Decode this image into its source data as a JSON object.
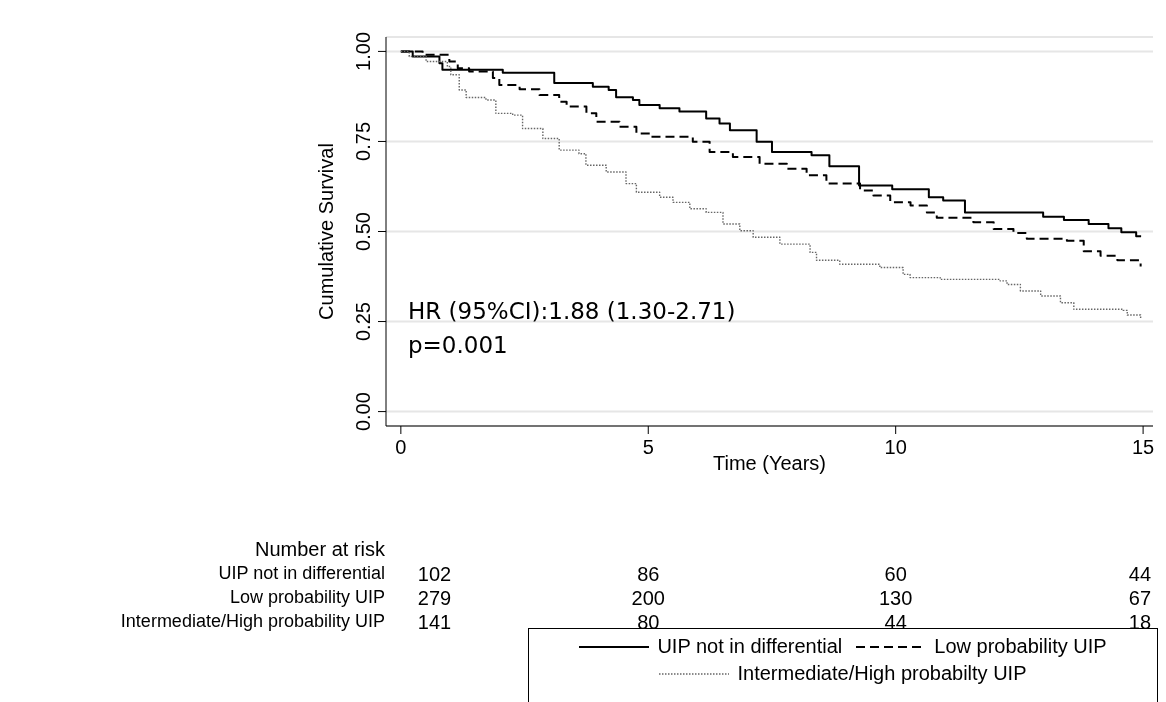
{
  "chart_data": {
    "type": "step",
    "xlabel": "Time (Years)",
    "ylabel": "Cumulative Survival",
    "xlim": [
      -0.3,
      15.2
    ],
    "xticks": [
      0,
      5,
      10,
      15
    ],
    "ylim": [
      -0.04,
      1.04
    ],
    "yticks": [
      {
        "value": 0,
        "label": "0.00"
      },
      {
        "value": 0.25,
        "label": "0.25"
      },
      {
        "value": 0.5,
        "label": "0.50"
      },
      {
        "value": 0.75,
        "label": "0.75"
      },
      {
        "value": 1,
        "label": "1.00"
      }
    ],
    "grid": "y",
    "legend": "bottom",
    "series": [
      {
        "name": "UIP not in differential",
        "color": "#000000",
        "line_style": "solid",
        "x": [
          0,
          0.24,
          0.78,
          0.84,
          2.06,
          3.1,
          3.88,
          4.2,
          4.35,
          4.69,
          4.82,
          5.23,
          5.63,
          6.17,
          6.44,
          6.65,
          7.19,
          7.5,
          8.3,
          8.66,
          9.26,
          9.93,
          10.67,
          10.96,
          11.4,
          12.98,
          13.4,
          13.9,
          14.3,
          14.56,
          14.86,
          14.96
        ],
        "values": [
          1,
          0.986,
          0.967,
          0.949,
          0.941,
          0.912,
          0.902,
          0.893,
          0.873,
          0.865,
          0.851,
          0.842,
          0.833,
          0.814,
          0.8,
          0.781,
          0.749,
          0.721,
          0.712,
          0.681,
          0.628,
          0.617,
          0.595,
          0.586,
          0.553,
          0.541,
          0.532,
          0.521,
          0.509,
          0.498,
          0.487,
          0.487
        ]
      },
      {
        "name": "Low probability UIP",
        "color": "#000000",
        "line_style": "dashed",
        "x": [
          0,
          0.44,
          0.98,
          1.15,
          1.38,
          1.86,
          1.99,
          2.4,
          2.8,
          3.2,
          3.35,
          3.75,
          3.95,
          4.42,
          4.76,
          5.03,
          5.9,
          6.24,
          6.71,
          7.25,
          7.8,
          8.2,
          8.6,
          9.28,
          9.55,
          9.89,
          10.3,
          10.63,
          10.83,
          11.57,
          11.98,
          12.38,
          12.65,
          13.46,
          13.8,
          14.14,
          14.48,
          14.95
        ],
        "values": [
          1,
          0.991,
          0.972,
          0.953,
          0.944,
          0.926,
          0.907,
          0.895,
          0.879,
          0.86,
          0.847,
          0.828,
          0.805,
          0.791,
          0.772,
          0.763,
          0.749,
          0.721,
          0.707,
          0.688,
          0.674,
          0.656,
          0.633,
          0.614,
          0.6,
          0.581,
          0.572,
          0.553,
          0.538,
          0.526,
          0.507,
          0.496,
          0.48,
          0.474,
          0.445,
          0.433,
          0.42,
          0.403
        ]
      },
      {
        "name": "Intermediate/High probabilty UIP",
        "color": "#666666",
        "line_style": "dotted",
        "x": [
          0,
          0.17,
          0.51,
          0.94,
          1.01,
          1.18,
          1.32,
          1.72,
          1.92,
          2.26,
          2.46,
          2.87,
          3.2,
          3.6,
          3.74,
          4.15,
          4.55,
          4.76,
          5.23,
          5.5,
          5.84,
          6.17,
          6.51,
          6.85,
          7.12,
          7.66,
          8.27,
          8.4,
          8.87,
          9.68,
          10.15,
          10.29,
          10.9,
          12.11,
          12.25,
          12.52,
          12.93,
          13.33,
          13.6,
          14.6,
          14.68,
          14.95
        ],
        "values": [
          1,
          0.986,
          0.972,
          0.958,
          0.935,
          0.893,
          0.872,
          0.865,
          0.828,
          0.823,
          0.786,
          0.758,
          0.726,
          0.716,
          0.684,
          0.665,
          0.633,
          0.609,
          0.595,
          0.581,
          0.563,
          0.553,
          0.521,
          0.502,
          0.484,
          0.465,
          0.442,
          0.42,
          0.409,
          0.4,
          0.381,
          0.372,
          0.367,
          0.363,
          0.353,
          0.335,
          0.321,
          0.302,
          0.284,
          0.281,
          0.268,
          0.26
        ]
      }
    ],
    "annotations": [
      "HR (95%CI):1.88 (1.30-2.71)",
      "p=0.001",
      "Number at risk",
      "UIP not in differential",
      "102",
      "86",
      "60",
      "44",
      "Low probability UIP",
      "279",
      "200",
      "130",
      "67",
      "Intermediate/High probability UIP",
      "141",
      "80",
      "44",
      "18"
    ]
  }
}
